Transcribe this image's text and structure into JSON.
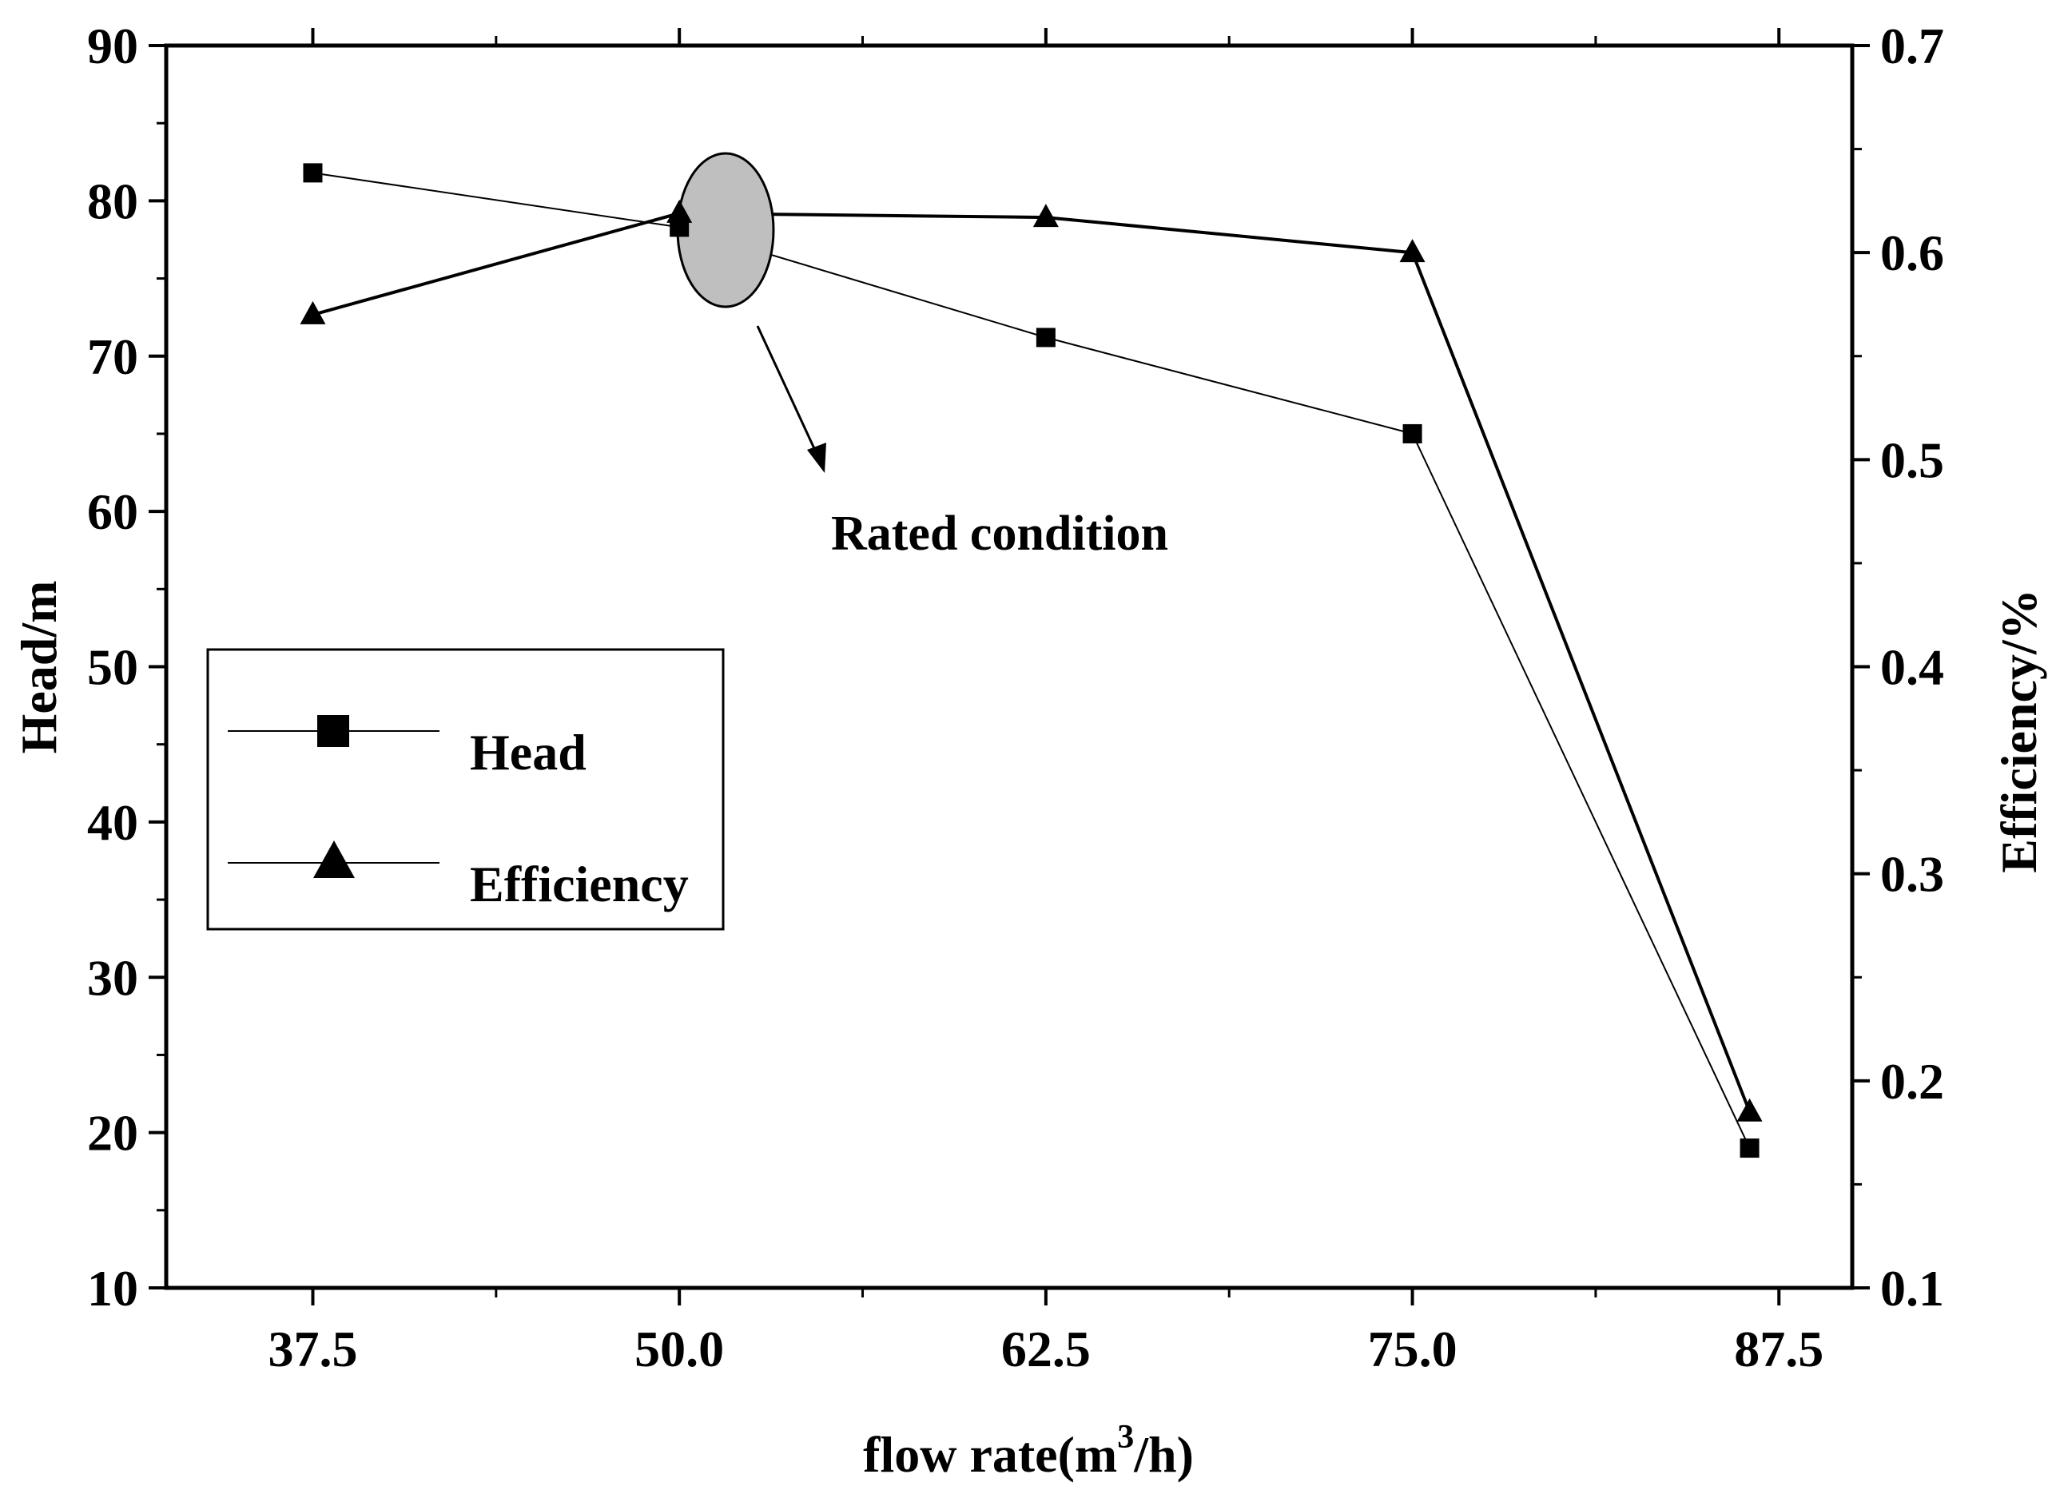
{
  "chart_data": {
    "type": "line",
    "title": "",
    "xlabel": "flow rate(m",
    "xlabel_sup": "3",
    "xlabel_tail": "/h)",
    "ylabel": "Head/m",
    "y2label": "Efficiency/%",
    "xlim": [
      32.5,
      90.0
    ],
    "ylim": [
      10,
      90
    ],
    "y2lim": [
      0.1,
      0.7
    ],
    "x_ticks": [
      "37.5",
      "50.0",
      "62.5",
      "75.0",
      "87.5"
    ],
    "y_ticks": [
      "10",
      "20",
      "30",
      "40",
      "50",
      "60",
      "70",
      "80",
      "90"
    ],
    "y2_ticks": [
      "0.1",
      "0.2",
      "0.3",
      "0.4",
      "0.5",
      "0.6",
      "0.7"
    ],
    "x": [
      37.5,
      50.0,
      62.5,
      75.0,
      86.5
    ],
    "series": [
      {
        "name": "Head",
        "axis": "left",
        "marker": "square",
        "values": [
          81.8,
          78.3,
          71.2,
          65.0,
          19.0
        ]
      },
      {
        "name": "Efficiency",
        "axis": "right",
        "marker": "triangle",
        "values": [
          0.57,
          0.619,
          0.617,
          0.6,
          0.185
        ]
      }
    ],
    "annotation": {
      "text": "Rated condition",
      "x": 50.0,
      "y": 77
    }
  }
}
